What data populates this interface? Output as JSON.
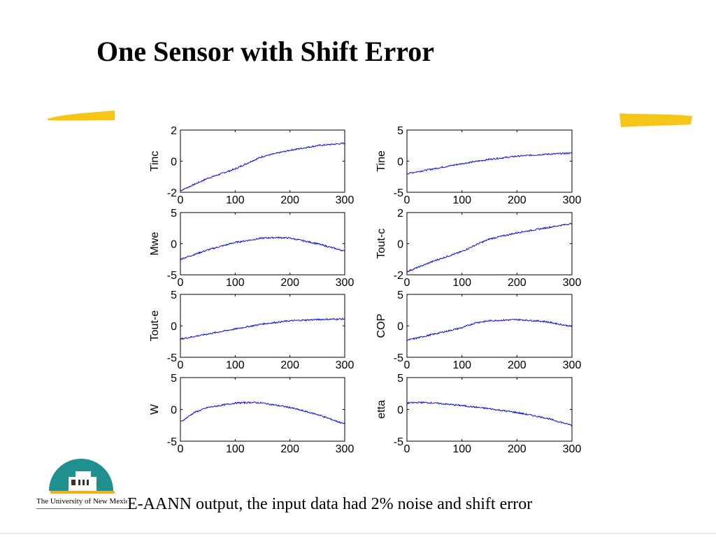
{
  "slide": {
    "title": "One Sensor with Shift Error",
    "caption": "E-AANN output, the input data had 2% noise and shift error",
    "logo_text": "The University of New Mexico"
  },
  "colors": {
    "line": "#1010d0",
    "highlight": "#f5c518",
    "logo_teal": "#1f8f8f",
    "logo_gold": "#f0b020"
  },
  "icons": {
    "logo": "university-of-new-mexico-logo-icon"
  },
  "chart_data": [
    {
      "type": "line",
      "ylabel": "Tinc",
      "ylim": [
        -2,
        2
      ],
      "yticks": [
        "-2",
        "0",
        "2"
      ],
      "xlim": [
        0,
        300
      ],
      "xticks": [
        "0",
        "100",
        "200",
        "300"
      ],
      "series": [
        {
          "x": [
            0,
            50,
            100,
            130,
            150,
            200,
            250,
            300
          ],
          "y": [
            -1.9,
            -1.1,
            -0.5,
            0.0,
            0.3,
            0.7,
            1.0,
            1.15
          ]
        }
      ]
    },
    {
      "type": "line",
      "ylabel": "Tine",
      "ylim": [
        -5,
        5
      ],
      "yticks": [
        "-5",
        "0",
        "5"
      ],
      "xlim": [
        0,
        300
      ],
      "xticks": [
        "0",
        "100",
        "200",
        "300"
      ],
      "series": [
        {
          "x": [
            0,
            50,
            100,
            150,
            200,
            250,
            300
          ],
          "y": [
            -2.0,
            -1.2,
            -0.4,
            0.3,
            0.8,
            1.1,
            1.3
          ]
        }
      ]
    },
    {
      "type": "line",
      "ylabel": "Mwe",
      "ylim": [
        -5,
        5
      ],
      "yticks": [
        "-5",
        "0",
        "5"
      ],
      "xlim": [
        0,
        300
      ],
      "xticks": [
        "0",
        "100",
        "200",
        "300"
      ],
      "series": [
        {
          "x": [
            0,
            50,
            100,
            150,
            175,
            200,
            250,
            300
          ],
          "y": [
            -2.5,
            -1.0,
            0.2,
            0.9,
            1.0,
            0.9,
            0.0,
            -1.2
          ]
        }
      ]
    },
    {
      "type": "line",
      "ylabel": "Tout-c",
      "ylim": [
        -2,
        2
      ],
      "yticks": [
        "-2",
        "0",
        "2"
      ],
      "xlim": [
        0,
        300
      ],
      "xticks": [
        "0",
        "100",
        "200",
        "300"
      ],
      "series": [
        {
          "x": [
            0,
            50,
            100,
            130,
            150,
            200,
            250,
            300
          ],
          "y": [
            -1.8,
            -1.1,
            -0.5,
            0.0,
            0.3,
            0.7,
            1.0,
            1.3
          ]
        }
      ]
    },
    {
      "type": "line",
      "ylabel": "Tout-e",
      "ylim": [
        -5,
        5
      ],
      "yticks": [
        "-5",
        "0",
        "5"
      ],
      "xlim": [
        0,
        300
      ],
      "xticks": [
        "0",
        "100",
        "200",
        "300"
      ],
      "series": [
        {
          "x": [
            0,
            50,
            100,
            150,
            200,
            250,
            300
          ],
          "y": [
            -2.1,
            -1.3,
            -0.5,
            0.3,
            0.8,
            1.0,
            1.1
          ]
        }
      ]
    },
    {
      "type": "line",
      "ylabel": "COP",
      "ylim": [
        -5,
        5
      ],
      "yticks": [
        "-5",
        "0",
        "5"
      ],
      "xlim": [
        0,
        300
      ],
      "xticks": [
        "0",
        "100",
        "200",
        "300"
      ],
      "series": [
        {
          "x": [
            0,
            50,
            100,
            125,
            150,
            200,
            250,
            300
          ],
          "y": [
            -2.3,
            -1.3,
            -0.3,
            0.5,
            0.8,
            1.0,
            0.7,
            -0.1
          ]
        }
      ]
    },
    {
      "type": "line",
      "ylabel": "W",
      "ylim": [
        -5,
        5
      ],
      "yticks": [
        "-5",
        "0",
        "5"
      ],
      "xlim": [
        0,
        300
      ],
      "xticks": [
        "0",
        "100",
        "200",
        "300"
      ],
      "series": [
        {
          "x": [
            0,
            25,
            50,
            100,
            130,
            150,
            200,
            250,
            300
          ],
          "y": [
            -2.0,
            -0.5,
            0.3,
            1.0,
            1.1,
            1.0,
            0.3,
            -0.8,
            -2.3
          ]
        }
      ]
    },
    {
      "type": "line",
      "ylabel": "etta",
      "ylim": [
        -5,
        5
      ],
      "yticks": [
        "-5",
        "0",
        "5"
      ],
      "xlim": [
        0,
        300
      ],
      "xticks": [
        "0",
        "100",
        "200",
        "300"
      ],
      "series": [
        {
          "x": [
            0,
            25,
            50,
            100,
            150,
            200,
            250,
            300
          ],
          "y": [
            1.0,
            1.1,
            1.0,
            0.6,
            0.1,
            -0.5,
            -1.3,
            -2.5
          ]
        }
      ]
    }
  ]
}
